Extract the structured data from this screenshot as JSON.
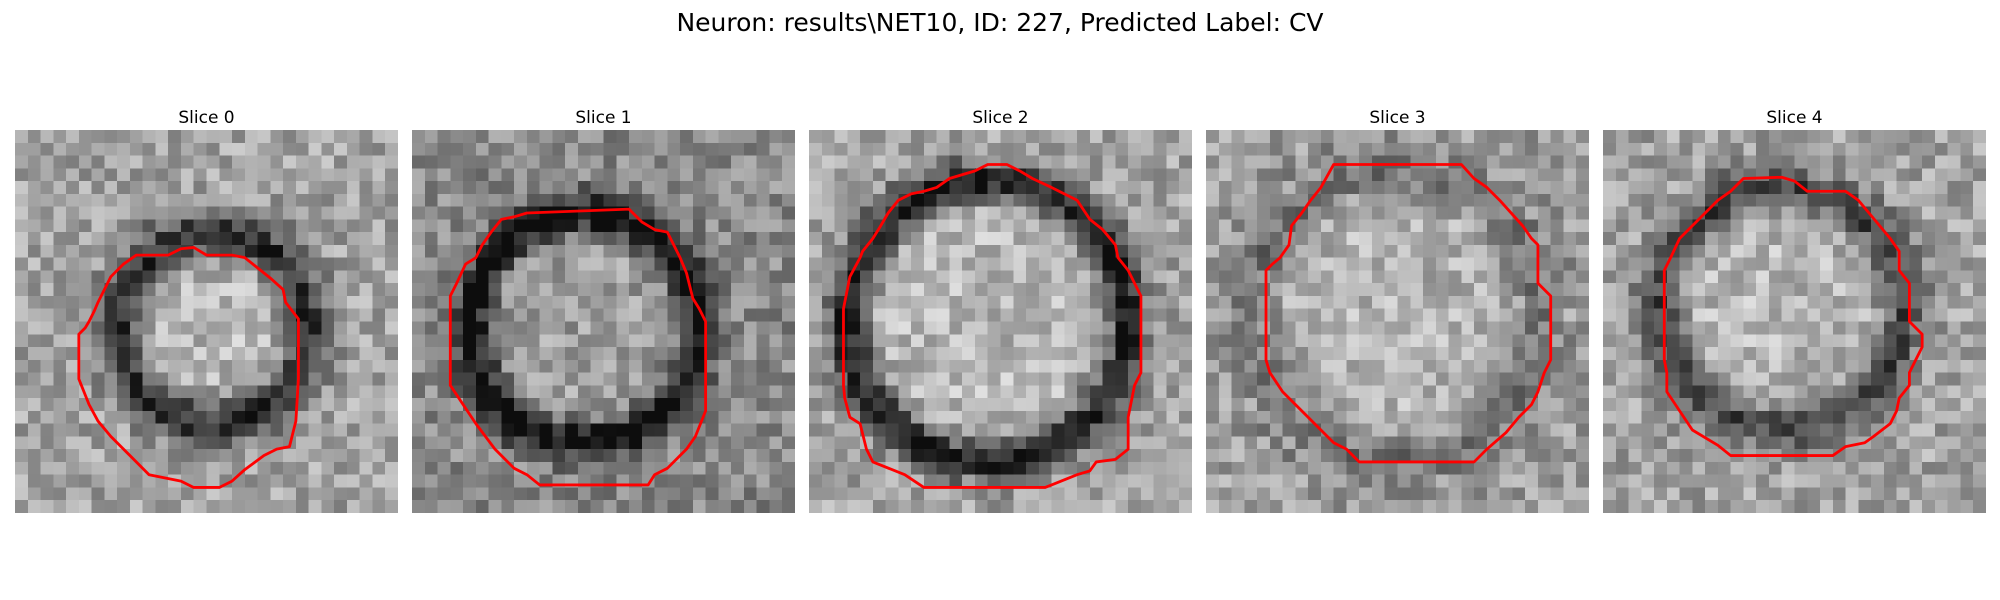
{
  "figure": {
    "title": "Neuron: results\\NET10, ID: 227, Predicted Label: CV"
  },
  "panels": [
    {
      "title": "Slice 0"
    },
    {
      "title": "Slice 1"
    },
    {
      "title": "Slice 2"
    },
    {
      "title": "Slice 3"
    },
    {
      "title": "Slice 4"
    }
  ],
  "colors": {
    "contour": "#ff0000",
    "colormap": "gray"
  }
}
